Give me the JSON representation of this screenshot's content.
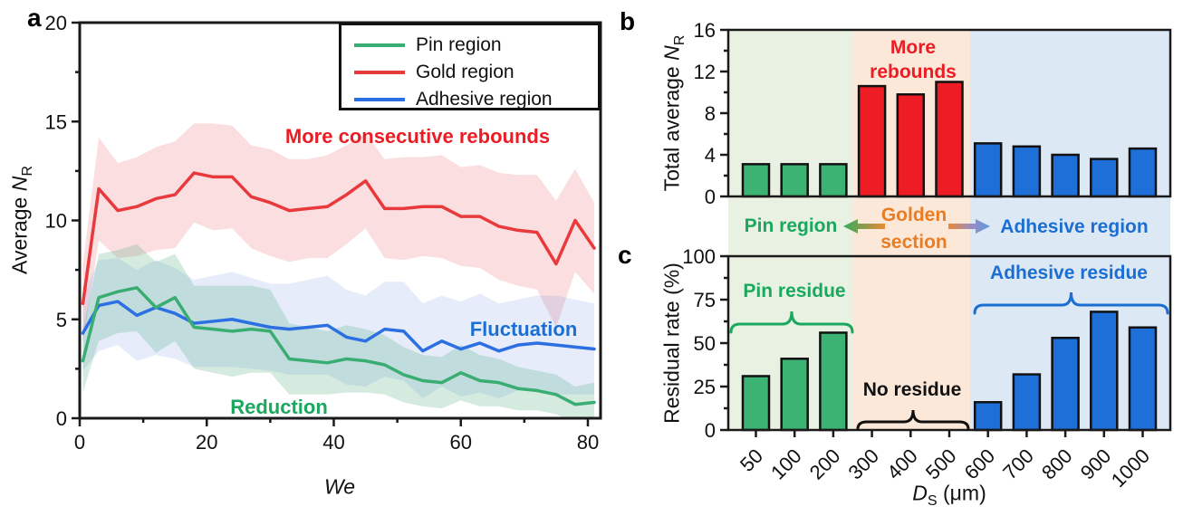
{
  "panels": {
    "a": "a",
    "b": "b",
    "c": "c"
  },
  "colors": {
    "axis": "#1a1a1a",
    "pin_green": "#3aad72",
    "gold_red": "#e8393d",
    "adhesive_blue": "#2b6fe3",
    "bar_green": "#3cb273",
    "bar_red": "#ee1c24",
    "bar_blue": "#1e6fd8",
    "bg_green": "#e9f1e3",
    "bg_orange": "#fbe8d9",
    "bg_blue": "#dde8f5",
    "text_red": "#ec1c24",
    "text_green": "#19a85e",
    "text_blue": "#1b6fd2",
    "text_orange": "#e87d24",
    "text_black": "#111111"
  },
  "strip": {
    "pin_label": "Pin region",
    "golden_label": "Golden section",
    "adhesive_label": "Adhesive region"
  },
  "chart_data": [
    {
      "id": "a",
      "type": "line",
      "xlabel": "We",
      "ylabel": "Average N_R",
      "ylabel_parts": {
        "prefix": "Average ",
        "var": "N",
        "sub": "R"
      },
      "xlim": [
        0,
        82
      ],
      "ylim": [
        0,
        20
      ],
      "x_ticks": [
        0,
        20,
        40,
        60,
        80
      ],
      "x_minor_ticks": [
        10,
        30,
        50,
        70
      ],
      "y_ticks": [
        0,
        5,
        10,
        15,
        20
      ],
      "y_minor_ticks": [
        2.5,
        7.5,
        12.5,
        17.5
      ],
      "legend_position": "top-right",
      "x": [
        0.5,
        3,
        6,
        9,
        12,
        15,
        18,
        21,
        24,
        27,
        30,
        33,
        36,
        39,
        42,
        45,
        48,
        51,
        54,
        57,
        60,
        63,
        66,
        69,
        72,
        75,
        78,
        81
      ],
      "series": [
        {
          "key": "pin",
          "name": "Pin region",
          "color": "#3aad72",
          "band_color": "rgba(64,165,114,0.22)",
          "values": [
            2.9,
            6.1,
            6.4,
            6.6,
            5.6,
            6.1,
            4.6,
            4.5,
            4.4,
            4.5,
            4.4,
            3.0,
            2.9,
            2.8,
            3.0,
            2.9,
            2.7,
            2.2,
            1.9,
            1.8,
            2.3,
            1.9,
            1.8,
            1.5,
            1.4,
            1.2,
            0.7,
            0.8
          ],
          "band": [
            1.6,
            2.2,
            2.1,
            2.2,
            2.3,
            2.2,
            2.1,
            2.2,
            2.3,
            2.2,
            2.1,
            1.8,
            1.7,
            1.6,
            1.7,
            1.6,
            1.5,
            1.4,
            1.3,
            1.3,
            1.4,
            1.3,
            1.2,
            1.1,
            1.0,
            1.0,
            0.9,
            1.0
          ]
        },
        {
          "key": "gold",
          "name": "Gold region",
          "color": "#e8393d",
          "band_color": "rgba(235,90,95,0.20)",
          "values": [
            5.8,
            11.6,
            10.5,
            10.7,
            11.1,
            11.3,
            12.4,
            12.2,
            12.2,
            11.2,
            10.9,
            10.5,
            10.6,
            10.7,
            11.3,
            12.0,
            10.6,
            10.6,
            10.7,
            10.7,
            10.2,
            10.2,
            9.7,
            9.5,
            9.4,
            7.8,
            10.0,
            8.6
          ],
          "band": [
            2.0,
            2.6,
            2.4,
            2.5,
            2.6,
            2.7,
            2.5,
            2.7,
            2.6,
            2.6,
            2.7,
            2.6,
            2.5,
            2.6,
            2.5,
            2.4,
            2.5,
            2.6,
            2.5,
            2.6,
            2.5,
            2.6,
            2.7,
            2.8,
            2.9,
            3.2,
            2.6,
            2.3
          ]
        },
        {
          "key": "adhesive",
          "name": "Adhesive region",
          "color": "#2b6fe3",
          "band_color": "rgba(90,130,220,0.15)",
          "values": [
            4.3,
            5.7,
            5.9,
            5.2,
            5.6,
            5.3,
            4.8,
            4.9,
            5.0,
            4.8,
            4.6,
            4.5,
            4.6,
            4.7,
            4.1,
            3.9,
            4.5,
            4.4,
            3.4,
            3.9,
            3.5,
            3.8,
            3.4,
            3.7,
            3.8,
            3.7,
            3.6,
            3.5
          ],
          "band": [
            1.9,
            2.3,
            2.2,
            2.3,
            2.4,
            2.3,
            2.2,
            2.3,
            2.4,
            2.3,
            2.2,
            2.3,
            2.4,
            2.5,
            2.4,
            2.3,
            2.4,
            2.5,
            2.4,
            2.3,
            2.4,
            2.5,
            2.4,
            2.3,
            2.4,
            2.5,
            2.4,
            2.3
          ]
        }
      ],
      "annotations": [
        {
          "text": "More consecutive rebounds",
          "color": "red",
          "x": 53,
          "y": 14.2
        },
        {
          "text": "Reduction",
          "color": "green",
          "x": 31,
          "y": 0.6
        },
        {
          "text": "Fluctuation",
          "color": "blue",
          "x": 70,
          "y": 4.5
        }
      ]
    },
    {
      "id": "b",
      "type": "bar",
      "ylabel": "Total average N_R",
      "ylabel_parts": {
        "prefix": "Total average ",
        "var": "N",
        "sub": "R"
      },
      "ylim": [
        0,
        16
      ],
      "y_ticks": [
        0,
        4,
        8,
        12,
        16
      ],
      "y_minor_ticks": [
        2,
        6,
        10,
        14
      ],
      "categories": [
        "50",
        "100",
        "200",
        "300",
        "400",
        "500",
        "600",
        "700",
        "800",
        "900",
        "1000"
      ],
      "values": [
        3.1,
        3.1,
        3.1,
        10.6,
        9.8,
        11.0,
        5.1,
        4.8,
        4.0,
        3.6,
        4.6
      ],
      "groups": {
        "pin": [
          0,
          1,
          2
        ],
        "gold": [
          3,
          4,
          5
        ],
        "adhesive": [
          6,
          7,
          8,
          9,
          10
        ]
      },
      "annotation": "More rebounds"
    },
    {
      "id": "c",
      "type": "bar",
      "xlabel": "D_S (um)",
      "xlabel_parts": {
        "var": "D",
        "sub": "S",
        "suffix": " (μm)"
      },
      "ylabel": "Residual rate (%)",
      "ylim": [
        0,
        100
      ],
      "y_ticks": [
        0,
        25,
        50,
        75,
        100
      ],
      "y_minor_ticks": [
        12.5,
        37.5,
        62.5,
        87.5
      ],
      "categories": [
        "50",
        "100",
        "200",
        "300",
        "400",
        "500",
        "600",
        "700",
        "800",
        "900",
        "1000"
      ],
      "values": [
        31,
        41,
        56,
        0,
        0,
        0,
        16,
        32,
        53,
        68,
        59
      ],
      "groups": {
        "pin": [
          0,
          1,
          2
        ],
        "none": [
          3,
          4,
          5
        ],
        "adhesive": [
          6,
          7,
          8,
          9,
          10
        ]
      },
      "annotations": [
        {
          "text": "Pin residue",
          "color": "green"
        },
        {
          "text": "No residue",
          "color": "black"
        },
        {
          "text": "Adhesive residue",
          "color": "blue"
        }
      ]
    }
  ]
}
